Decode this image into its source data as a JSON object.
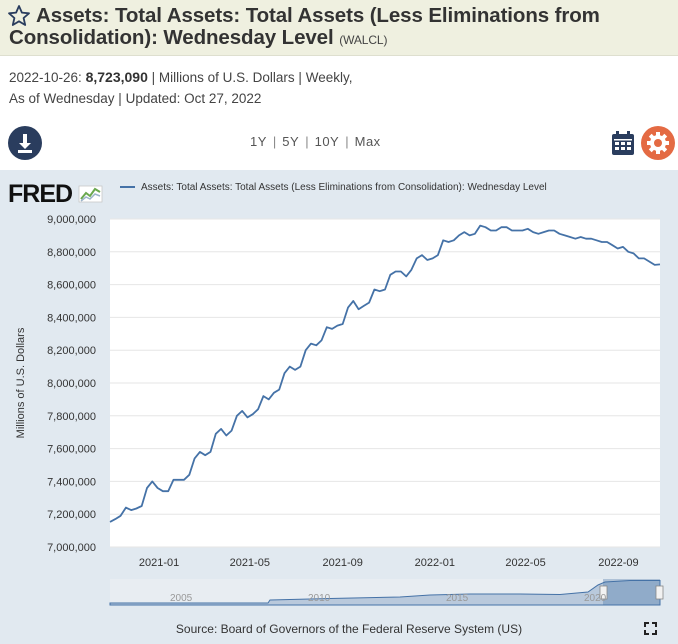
{
  "header": {
    "title": "Assets: Total Assets: Total Assets (Less Eliminations from Consolidation): Wednesday Level",
    "series_id": "(WALCL)",
    "background": "#eff0e0"
  },
  "meta": {
    "date": "2022-10-26:",
    "value": "8,723,090",
    "units_freq": "| Millions of U.S. Dollars | Weekly,",
    "line2": "As of Wednesday | Updated: Oct 27, 2022"
  },
  "toolbar": {
    "download_icon": "download-icon",
    "ranges": [
      "1Y",
      "5Y",
      "10Y",
      "Max"
    ],
    "calendar_icon": "calendar-icon",
    "settings_icon": "gear-icon",
    "accent_dark": "#2a3d5e",
    "accent_orange": "#e46a43"
  },
  "chart": {
    "logo": "FRED",
    "legend": "Assets: Total Assets: Total Assets (Less Eliminations from Consolidation): Wednesday Level",
    "source": "Source: Board of Governors of the Federal Reserve System (US)",
    "fullscreen_icon": "fullscreen-icon",
    "navigator_labels": [
      "2005",
      "2010",
      "2015",
      "2020"
    ],
    "panel_color": "#e1e9f0",
    "line_color": "#4572a7"
  },
  "chart_data": {
    "type": "line",
    "title": "",
    "xlabel": "",
    "ylabel": "Millions of U.S. Dollars",
    "ylim": [
      7000000,
      9000000
    ],
    "yticks": [
      "9,000,000",
      "8,800,000",
      "8,600,000",
      "8,400,000",
      "8,200,000",
      "8,000,000",
      "7,800,000",
      "7,600,000",
      "7,400,000",
      "7,200,000",
      "7,000,000"
    ],
    "xlim": [
      "2020-10-28",
      "2022-10-26"
    ],
    "xticks": [
      {
        "date": "2021-01-01",
        "label": "2021-01"
      },
      {
        "date": "2021-05-01",
        "label": "2021-05"
      },
      {
        "date": "2021-09-01",
        "label": "2021-09"
      },
      {
        "date": "2022-01-01",
        "label": "2022-01"
      },
      {
        "date": "2022-05-01",
        "label": "2022-05"
      },
      {
        "date": "2022-09-01",
        "label": "2022-09"
      }
    ],
    "grid": true,
    "legend_position": "top",
    "series": [
      {
        "name": "Assets: Total Assets: Total Assets (Less Eliminations from Consolidation): Wednesday Level",
        "x": [
          "2020-10-28",
          "2020-11-04",
          "2020-11-11",
          "2020-11-18",
          "2020-11-25",
          "2020-12-02",
          "2020-12-09",
          "2020-12-16",
          "2020-12-23",
          "2020-12-30",
          "2021-01-06",
          "2021-01-13",
          "2021-01-20",
          "2021-01-27",
          "2021-02-03",
          "2021-02-10",
          "2021-02-17",
          "2021-02-24",
          "2021-03-03",
          "2021-03-10",
          "2021-03-17",
          "2021-03-24",
          "2021-03-31",
          "2021-04-07",
          "2021-04-14",
          "2021-04-21",
          "2021-04-28",
          "2021-05-05",
          "2021-05-12",
          "2021-05-19",
          "2021-05-26",
          "2021-06-02",
          "2021-06-09",
          "2021-06-16",
          "2021-06-23",
          "2021-06-30",
          "2021-07-07",
          "2021-07-14",
          "2021-07-21",
          "2021-07-28",
          "2021-08-04",
          "2021-08-11",
          "2021-08-18",
          "2021-08-25",
          "2021-09-01",
          "2021-09-08",
          "2021-09-15",
          "2021-09-22",
          "2021-09-29",
          "2021-10-06",
          "2021-10-13",
          "2021-10-20",
          "2021-10-27",
          "2021-11-03",
          "2021-11-10",
          "2021-11-17",
          "2021-11-24",
          "2021-12-01",
          "2021-12-08",
          "2021-12-15",
          "2021-12-22",
          "2021-12-29",
          "2022-01-05",
          "2022-01-12",
          "2022-01-19",
          "2022-01-26",
          "2022-02-02",
          "2022-02-09",
          "2022-02-16",
          "2022-02-23",
          "2022-03-02",
          "2022-03-09",
          "2022-03-16",
          "2022-03-23",
          "2022-03-30",
          "2022-04-06",
          "2022-04-13",
          "2022-04-20",
          "2022-04-27",
          "2022-05-04",
          "2022-05-11",
          "2022-05-18",
          "2022-05-25",
          "2022-06-01",
          "2022-06-08",
          "2022-06-15",
          "2022-06-22",
          "2022-06-29",
          "2022-07-06",
          "2022-07-13",
          "2022-07-20",
          "2022-07-27",
          "2022-08-03",
          "2022-08-10",
          "2022-08-17",
          "2022-08-24",
          "2022-08-31",
          "2022-09-07",
          "2022-09-14",
          "2022-09-21",
          "2022-09-28",
          "2022-10-05",
          "2022-10-12",
          "2022-10-19",
          "2022-10-26"
        ],
        "values": [
          7153000,
          7170000,
          7190000,
          7240000,
          7225000,
          7235000,
          7250000,
          7360000,
          7400000,
          7360000,
          7340000,
          7340000,
          7410000,
          7410000,
          7410000,
          7440000,
          7540000,
          7580000,
          7560000,
          7580000,
          7690000,
          7720000,
          7680000,
          7710000,
          7800000,
          7830000,
          7790000,
          7810000,
          7840000,
          7920000,
          7900000,
          7940000,
          7960000,
          8060000,
          8100000,
          8080000,
          8100000,
          8200000,
          8240000,
          8230000,
          8260000,
          8340000,
          8330000,
          8350000,
          8360000,
          8460000,
          8500000,
          8450000,
          8470000,
          8490000,
          8570000,
          8560000,
          8570000,
          8660000,
          8680000,
          8680000,
          8650000,
          8690000,
          8760000,
          8780000,
          8750000,
          8760000,
          8780000,
          8870000,
          8860000,
          8870000,
          8900000,
          8920000,
          8900000,
          8910000,
          8960000,
          8950000,
          8930000,
          8930000,
          8950000,
          8950000,
          8930000,
          8930000,
          8930000,
          8940000,
          8920000,
          8910000,
          8920000,
          8930000,
          8930000,
          8910000,
          8900000,
          8890000,
          8880000,
          8890000,
          8880000,
          8880000,
          8870000,
          8860000,
          8860000,
          8840000,
          8820000,
          8830000,
          8800000,
          8790000,
          8760000,
          8760000,
          8740000,
          8720000,
          8723090
        ]
      }
    ]
  }
}
